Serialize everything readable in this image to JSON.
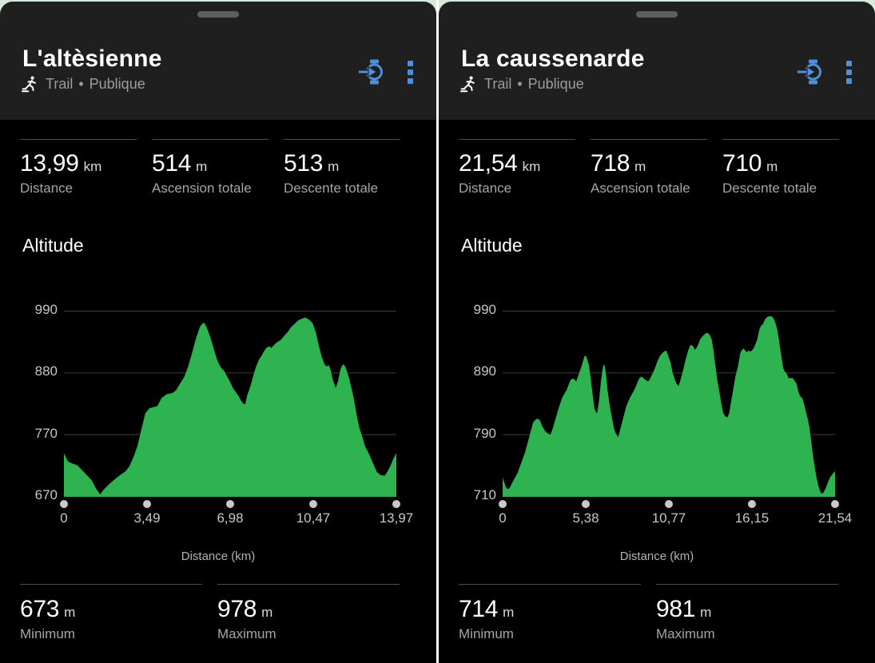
{
  "colors": {
    "accent_blue": "#4d8fd8",
    "chart_green": "#2fb350",
    "sheet_bg": "#1f1f1f",
    "page_bg": "#000000",
    "mint_top": "#d7e9da"
  },
  "panels": [
    {
      "title": "L'altèsienne",
      "subtitle": {
        "activity": "Trail",
        "separator": "•",
        "visibility": "Publique"
      },
      "stats": [
        {
          "value": "13,99",
          "unit": "km",
          "label": "Distance"
        },
        {
          "value": "514",
          "unit": "m",
          "label": "Ascension totale"
        },
        {
          "value": "513",
          "unit": "m",
          "label": "Descente totale"
        }
      ],
      "chart": {
        "type": "area",
        "title": "Altitude",
        "xlabel": "Distance (km)",
        "x_max": 13.97,
        "x_tick_labels": [
          "0",
          "3,49",
          "6,98",
          "10,47",
          "13,97"
        ],
        "y_tick_labels": [
          "990",
          "880",
          "770",
          "670"
        ],
        "y_scale": [
          670,
          770,
          880,
          990
        ],
        "grid": true,
        "fill": "#2fb350",
        "profile": [
          [
            0.0,
            740
          ],
          [
            0.08,
            734
          ],
          [
            0.17,
            727
          ],
          [
            0.34,
            724
          ],
          [
            0.56,
            721
          ],
          [
            0.79,
            712
          ],
          [
            1.01,
            703
          ],
          [
            1.18,
            696
          ],
          [
            1.35,
            683
          ],
          [
            1.52,
            674
          ],
          [
            1.68,
            682
          ],
          [
            1.91,
            691
          ],
          [
            2.13,
            698
          ],
          [
            2.36,
            705
          ],
          [
            2.58,
            711
          ],
          [
            2.75,
            719
          ],
          [
            2.92,
            734
          ],
          [
            3.09,
            752
          ],
          [
            3.25,
            779
          ],
          [
            3.42,
            808
          ],
          [
            3.59,
            817
          ],
          [
            3.76,
            819
          ],
          [
            3.93,
            821
          ],
          [
            4.1,
            835
          ],
          [
            4.32,
            842
          ],
          [
            4.55,
            844
          ],
          [
            4.71,
            849
          ],
          [
            4.88,
            861
          ],
          [
            5.05,
            872
          ],
          [
            5.22,
            891
          ],
          [
            5.39,
            916
          ],
          [
            5.55,
            941
          ],
          [
            5.72,
            962
          ],
          [
            5.87,
            969
          ],
          [
            5.95,
            965
          ],
          [
            6.05,
            955
          ],
          [
            6.17,
            941
          ],
          [
            6.3,
            922
          ],
          [
            6.42,
            905
          ],
          [
            6.52,
            895
          ],
          [
            6.62,
            888
          ],
          [
            6.72,
            884
          ],
          [
            6.85,
            874
          ],
          [
            6.98,
            864
          ],
          [
            7.1,
            853
          ],
          [
            7.22,
            846
          ],
          [
            7.35,
            838
          ],
          [
            7.45,
            830
          ],
          [
            7.55,
            825
          ],
          [
            7.62,
            824
          ],
          [
            7.7,
            840
          ],
          [
            7.82,
            854
          ],
          [
            7.91,
            867
          ],
          [
            8.05,
            888
          ],
          [
            8.19,
            903
          ],
          [
            8.3,
            910
          ],
          [
            8.42,
            919
          ],
          [
            8.53,
            925
          ],
          [
            8.64,
            927
          ],
          [
            8.72,
            924
          ],
          [
            8.82,
            929
          ],
          [
            8.95,
            934
          ],
          [
            9.1,
            938
          ],
          [
            9.25,
            945
          ],
          [
            9.4,
            952
          ],
          [
            9.55,
            961
          ],
          [
            9.7,
            967
          ],
          [
            9.85,
            973
          ],
          [
            10.0,
            976
          ],
          [
            10.16,
            978
          ],
          [
            10.3,
            974
          ],
          [
            10.45,
            968
          ],
          [
            10.6,
            950
          ],
          [
            10.72,
            927
          ],
          [
            10.83,
            909
          ],
          [
            10.95,
            895
          ],
          [
            11.05,
            891
          ],
          [
            11.12,
            894
          ],
          [
            11.2,
            886
          ],
          [
            11.3,
            868
          ],
          [
            11.42,
            853
          ],
          [
            11.52,
            865
          ],
          [
            11.62,
            886
          ],
          [
            11.72,
            895
          ],
          [
            11.8,
            893
          ],
          [
            11.9,
            882
          ],
          [
            12.0,
            868
          ],
          [
            12.1,
            850
          ],
          [
            12.2,
            830
          ],
          [
            12.3,
            806
          ],
          [
            12.42,
            782
          ],
          [
            12.53,
            768
          ],
          [
            12.66,
            751
          ],
          [
            12.81,
            740
          ],
          [
            12.98,
            725
          ],
          [
            13.15,
            710
          ],
          [
            13.31,
            705
          ],
          [
            13.48,
            704
          ],
          [
            13.6,
            711
          ],
          [
            13.72,
            720
          ],
          [
            13.83,
            730
          ],
          [
            13.92,
            737
          ],
          [
            13.97,
            741
          ]
        ]
      },
      "minmax": [
        {
          "value": "673",
          "unit": "m",
          "label": "Minimum"
        },
        {
          "value": "978",
          "unit": "m",
          "label": "Maximum"
        }
      ]
    },
    {
      "title": "La caussenarde",
      "subtitle": {
        "activity": "Trail",
        "separator": "•",
        "visibility": "Publique"
      },
      "stats": [
        {
          "value": "21,54",
          "unit": "km",
          "label": "Distance"
        },
        {
          "value": "718",
          "unit": "m",
          "label": "Ascension totale"
        },
        {
          "value": "710",
          "unit": "m",
          "label": "Descente totale"
        }
      ],
      "chart": {
        "type": "area",
        "title": "Altitude",
        "xlabel": "Distance (km)",
        "x_max": 21.54,
        "x_tick_labels": [
          "0",
          "5,38",
          "10,77",
          "16,15",
          "21,54"
        ],
        "y_tick_labels": [
          "990",
          "890",
          "790",
          "710"
        ],
        "y_scale": [
          710,
          790,
          890,
          990
        ],
        "grid": true,
        "fill": "#2fb350",
        "profile": [
          [
            0.0,
            735
          ],
          [
            0.1,
            729
          ],
          [
            0.22,
            722
          ],
          [
            0.34,
            720
          ],
          [
            0.43,
            721
          ],
          [
            0.52,
            724
          ],
          [
            0.69,
            731
          ],
          [
            0.95,
            740
          ],
          [
            1.21,
            754
          ],
          [
            1.46,
            768
          ],
          [
            1.72,
            787
          ],
          [
            1.98,
            810
          ],
          [
            2.12,
            814
          ],
          [
            2.24,
            816
          ],
          [
            2.41,
            814
          ],
          [
            2.58,
            803
          ],
          [
            2.76,
            796
          ],
          [
            2.92,
            792
          ],
          [
            3.1,
            790
          ],
          [
            3.24,
            800
          ],
          [
            3.36,
            810
          ],
          [
            3.62,
            832
          ],
          [
            3.88,
            851
          ],
          [
            4.14,
            862
          ],
          [
            4.39,
            878
          ],
          [
            4.55,
            881
          ],
          [
            4.66,
            879
          ],
          [
            4.77,
            876
          ],
          [
            4.95,
            889
          ],
          [
            5.12,
            901
          ],
          [
            5.29,
            916
          ],
          [
            5.39,
            918
          ],
          [
            5.5,
            910
          ],
          [
            5.6,
            901
          ],
          [
            5.7,
            882
          ],
          [
            5.8,
            862
          ],
          [
            5.95,
            832
          ],
          [
            6.05,
            827
          ],
          [
            6.12,
            825
          ],
          [
            6.25,
            845
          ],
          [
            6.38,
            878
          ],
          [
            6.51,
            901
          ],
          [
            6.6,
            903
          ],
          [
            6.7,
            888
          ],
          [
            6.8,
            862
          ],
          [
            6.94,
            838
          ],
          [
            7.08,
            818
          ],
          [
            7.22,
            800
          ],
          [
            7.35,
            791
          ],
          [
            7.5,
            787
          ],
          [
            7.63,
            800
          ],
          [
            7.76,
            812
          ],
          [
            8.01,
            836
          ],
          [
            8.27,
            851
          ],
          [
            8.53,
            862
          ],
          [
            8.7,
            872
          ],
          [
            8.85,
            881
          ],
          [
            9.0,
            884
          ],
          [
            9.15,
            881
          ],
          [
            9.28,
            878
          ],
          [
            9.43,
            876
          ],
          [
            9.55,
            880
          ],
          [
            9.68,
            887
          ],
          [
            9.85,
            896
          ],
          [
            10.02,
            908
          ],
          [
            10.17,
            916
          ],
          [
            10.32,
            921
          ],
          [
            10.45,
            924
          ],
          [
            10.6,
            926
          ],
          [
            10.74,
            917
          ],
          [
            10.88,
            907
          ],
          [
            11.02,
            890
          ],
          [
            11.15,
            880
          ],
          [
            11.28,
            872
          ],
          [
            11.4,
            869
          ],
          [
            11.52,
            878
          ],
          [
            11.67,
            892
          ],
          [
            11.8,
            905
          ],
          [
            11.92,
            917
          ],
          [
            12.05,
            928
          ],
          [
            12.15,
            934
          ],
          [
            12.25,
            935
          ],
          [
            12.36,
            932
          ],
          [
            12.46,
            927
          ],
          [
            12.56,
            930
          ],
          [
            12.68,
            936
          ],
          [
            12.8,
            944
          ],
          [
            12.92,
            948
          ],
          [
            13.05,
            951
          ],
          [
            13.18,
            954
          ],
          [
            13.3,
            954
          ],
          [
            13.42,
            951
          ],
          [
            13.54,
            944
          ],
          [
            13.65,
            929
          ],
          [
            13.77,
            905
          ],
          [
            13.9,
            880
          ],
          [
            14.02,
            863
          ],
          [
            14.15,
            843
          ],
          [
            14.28,
            826
          ],
          [
            14.42,
            820
          ],
          [
            14.56,
            818
          ],
          [
            14.68,
            825
          ],
          [
            14.8,
            843
          ],
          [
            14.95,
            864
          ],
          [
            15.1,
            886
          ],
          [
            15.25,
            900
          ],
          [
            15.4,
            922
          ],
          [
            15.52,
            927
          ],
          [
            15.62,
            929
          ],
          [
            15.72,
            926
          ],
          [
            15.82,
            923
          ],
          [
            15.93,
            926
          ],
          [
            16.04,
            924
          ],
          [
            16.15,
            926
          ],
          [
            16.26,
            929
          ],
          [
            16.38,
            936
          ],
          [
            16.5,
            944
          ],
          [
            16.62,
            958
          ],
          [
            16.74,
            966
          ],
          [
            16.86,
            968
          ],
          [
            16.98,
            975
          ],
          [
            17.1,
            979
          ],
          [
            17.25,
            981
          ],
          [
            17.4,
            981
          ],
          [
            17.52,
            979
          ],
          [
            17.65,
            972
          ],
          [
            17.78,
            962
          ],
          [
            17.9,
            944
          ],
          [
            18.0,
            927
          ],
          [
            18.1,
            910
          ],
          [
            18.18,
            898
          ],
          [
            18.28,
            892
          ],
          [
            18.4,
            889
          ],
          [
            18.52,
            882
          ],
          [
            18.64,
            881
          ],
          [
            18.76,
            882
          ],
          [
            18.9,
            878
          ],
          [
            19.05,
            872
          ],
          [
            19.18,
            858
          ],
          [
            19.3,
            852
          ],
          [
            19.42,
            849
          ],
          [
            19.55,
            838
          ],
          [
            19.66,
            826
          ],
          [
            19.76,
            817
          ],
          [
            19.86,
            805
          ],
          [
            19.95,
            789
          ],
          [
            20.08,
            768
          ],
          [
            20.2,
            752
          ],
          [
            20.33,
            736
          ],
          [
            20.47,
            724
          ],
          [
            20.6,
            716
          ],
          [
            20.72,
            714
          ],
          [
            20.83,
            717
          ],
          [
            20.95,
            722
          ],
          [
            21.1,
            730
          ],
          [
            21.25,
            736
          ],
          [
            21.4,
            740
          ],
          [
            21.54,
            743
          ]
        ]
      },
      "minmax": [
        {
          "value": "714",
          "unit": "m",
          "label": "Minimum"
        },
        {
          "value": "981",
          "unit": "m",
          "label": "Maximum"
        }
      ]
    }
  ]
}
